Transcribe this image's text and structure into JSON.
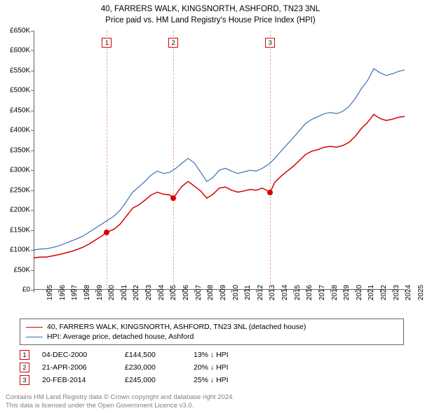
{
  "title_line1": "40, FARRERS WALK, KINGSNORTH, ASHFORD, TN23 3NL",
  "title_line2": "Price paid vs. HM Land Registry's House Price Index (HPI)",
  "chart": {
    "type": "line",
    "background_color": "#ffffff",
    "axis_color": "#666666",
    "tick_font_size": 10,
    "x_start_year": 1995,
    "x_end_year": 2025,
    "x_tick_years": [
      1995,
      1996,
      1997,
      1998,
      1999,
      2000,
      2001,
      2002,
      2003,
      2004,
      2005,
      2006,
      2007,
      2008,
      2009,
      2010,
      2011,
      2012,
      2013,
      2014,
      2015,
      2016,
      2017,
      2018,
      2019,
      2020,
      2021,
      2022,
      2023,
      2024,
      2025
    ],
    "y_min": 0,
    "y_max": 650000,
    "y_tick_step": 50000,
    "y_tick_labels": [
      "£0",
      "£50K",
      "£100K",
      "£150K",
      "£200K",
      "£250K",
      "£300K",
      "£350K",
      "£400K",
      "£450K",
      "£500K",
      "£550K",
      "£600K",
      "£650K"
    ],
    "series": [
      {
        "name": "property",
        "label": "40, FARRERS WALK, KINGSNORTH, ASHFORD, TN23 3NL (detached house)",
        "color": "#d40000",
        "line_width": 1.5,
        "points": [
          [
            1995.0,
            80000
          ],
          [
            1995.5,
            82000
          ],
          [
            1996.0,
            82000
          ],
          [
            1996.5,
            85000
          ],
          [
            1997.0,
            88000
          ],
          [
            1997.5,
            92000
          ],
          [
            1998.0,
            96000
          ],
          [
            1998.5,
            101000
          ],
          [
            1999.0,
            107000
          ],
          [
            1999.5,
            115000
          ],
          [
            2000.0,
            125000
          ],
          [
            2000.5,
            135000
          ],
          [
            2000.92,
            144500
          ],
          [
            2001.5,
            152000
          ],
          [
            2002.0,
            165000
          ],
          [
            2002.5,
            185000
          ],
          [
            2003.0,
            205000
          ],
          [
            2003.5,
            213000
          ],
          [
            2004.0,
            225000
          ],
          [
            2004.5,
            238000
          ],
          [
            2005.0,
            245000
          ],
          [
            2005.5,
            240000
          ],
          [
            2006.0,
            238000
          ],
          [
            2006.3,
            230000
          ],
          [
            2006.7,
            248000
          ],
          [
            2007.0,
            260000
          ],
          [
            2007.5,
            272000
          ],
          [
            2008.0,
            260000
          ],
          [
            2008.5,
            248000
          ],
          [
            2009.0,
            230000
          ],
          [
            2009.5,
            240000
          ],
          [
            2010.0,
            255000
          ],
          [
            2010.5,
            258000
          ],
          [
            2011.0,
            250000
          ],
          [
            2011.5,
            245000
          ],
          [
            2012.0,
            248000
          ],
          [
            2012.5,
            252000
          ],
          [
            2013.0,
            250000
          ],
          [
            2013.5,
            255000
          ],
          [
            2014.13,
            245000
          ],
          [
            2014.5,
            270000
          ],
          [
            2015.0,
            285000
          ],
          [
            2015.5,
            298000
          ],
          [
            2016.0,
            310000
          ],
          [
            2016.5,
            325000
          ],
          [
            2017.0,
            340000
          ],
          [
            2017.5,
            348000
          ],
          [
            2018.0,
            352000
          ],
          [
            2018.5,
            358000
          ],
          [
            2019.0,
            360000
          ],
          [
            2019.5,
            358000
          ],
          [
            2020.0,
            362000
          ],
          [
            2020.5,
            370000
          ],
          [
            2021.0,
            385000
          ],
          [
            2021.5,
            405000
          ],
          [
            2022.0,
            420000
          ],
          [
            2022.5,
            440000
          ],
          [
            2023.0,
            430000
          ],
          [
            2023.5,
            425000
          ],
          [
            2024.0,
            428000
          ],
          [
            2024.5,
            433000
          ],
          [
            2025.0,
            435000
          ]
        ]
      },
      {
        "name": "hpi",
        "label": "HPI: Average price, detached house, Ashford",
        "color": "#3b6fb6",
        "line_width": 1.2,
        "points": [
          [
            1995.0,
            100000
          ],
          [
            1995.5,
            102000
          ],
          [
            1996.0,
            103000
          ],
          [
            1996.5,
            106000
          ],
          [
            1997.0,
            110000
          ],
          [
            1997.5,
            116000
          ],
          [
            1998.0,
            122000
          ],
          [
            1998.5,
            128000
          ],
          [
            1999.0,
            135000
          ],
          [
            1999.5,
            145000
          ],
          [
            2000.0,
            155000
          ],
          [
            2000.5,
            165000
          ],
          [
            2001.0,
            175000
          ],
          [
            2001.5,
            185000
          ],
          [
            2002.0,
            200000
          ],
          [
            2002.5,
            222000
          ],
          [
            2003.0,
            245000
          ],
          [
            2003.5,
            258000
          ],
          [
            2004.0,
            272000
          ],
          [
            2004.5,
            288000
          ],
          [
            2005.0,
            298000
          ],
          [
            2005.5,
            292000
          ],
          [
            2006.0,
            295000
          ],
          [
            2006.5,
            305000
          ],
          [
            2007.0,
            318000
          ],
          [
            2007.5,
            330000
          ],
          [
            2008.0,
            318000
          ],
          [
            2008.5,
            295000
          ],
          [
            2009.0,
            272000
          ],
          [
            2009.5,
            282000
          ],
          [
            2010.0,
            300000
          ],
          [
            2010.5,
            305000
          ],
          [
            2011.0,
            298000
          ],
          [
            2011.5,
            292000
          ],
          [
            2012.0,
            296000
          ],
          [
            2012.5,
            300000
          ],
          [
            2013.0,
            298000
          ],
          [
            2013.5,
            305000
          ],
          [
            2014.0,
            315000
          ],
          [
            2014.5,
            330000
          ],
          [
            2015.0,
            348000
          ],
          [
            2015.5,
            365000
          ],
          [
            2016.0,
            382000
          ],
          [
            2016.5,
            400000
          ],
          [
            2017.0,
            418000
          ],
          [
            2017.5,
            428000
          ],
          [
            2018.0,
            435000
          ],
          [
            2018.5,
            442000
          ],
          [
            2019.0,
            445000
          ],
          [
            2019.5,
            442000
          ],
          [
            2020.0,
            448000
          ],
          [
            2020.5,
            460000
          ],
          [
            2021.0,
            480000
          ],
          [
            2021.5,
            505000
          ],
          [
            2022.0,
            525000
          ],
          [
            2022.5,
            555000
          ],
          [
            2023.0,
            545000
          ],
          [
            2023.5,
            538000
          ],
          [
            2024.0,
            542000
          ],
          [
            2024.5,
            548000
          ],
          [
            2025.0,
            552000
          ]
        ]
      }
    ],
    "events": [
      {
        "n": "1",
        "year": 2000.92,
        "price_value": 144500,
        "date": "04-DEC-2000",
        "price": "£144,500",
        "pct": "13% ↓ HPI",
        "badge_border": "#d40000",
        "line_color": "#e7a3a3"
      },
      {
        "n": "2",
        "year": 2006.3,
        "price_value": 230000,
        "date": "21-APR-2006",
        "price": "£230,000",
        "pct": "20% ↓ HPI",
        "badge_border": "#d40000",
        "line_color": "#e7a3a3"
      },
      {
        "n": "3",
        "year": 2014.13,
        "price_value": 245000,
        "date": "20-FEB-2014",
        "price": "£245,000",
        "pct": "25% ↓ HPI",
        "badge_border": "#d40000",
        "line_color": "#e7a3a3"
      }
    ]
  },
  "legend_border_color": "#666666",
  "footer_line1": "Contains HM Land Registry data © Crown copyright and database right 2024.",
  "footer_line2": "This data is licensed under the Open Government Licence v3.0.",
  "footer_color": "#808080"
}
